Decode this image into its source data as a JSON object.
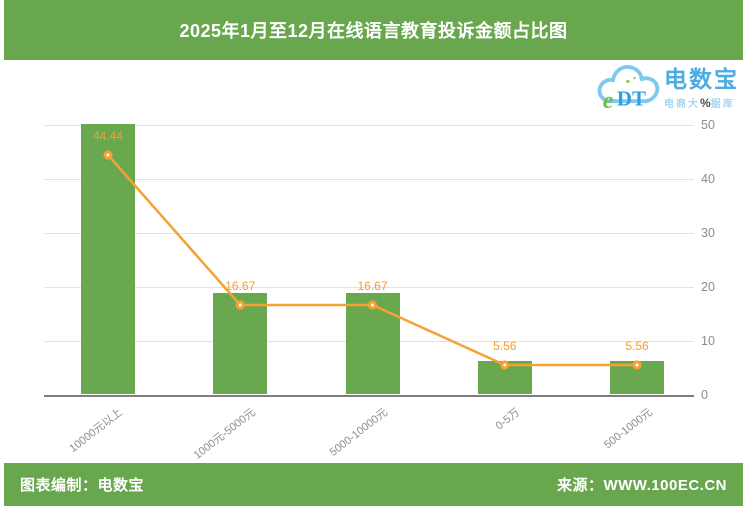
{
  "header": {
    "title": "2025年1月至12月在线语言教育投诉金额占比图"
  },
  "logo": {
    "cloud_e": "e",
    "cloud_dt": "DT",
    "brand": "电数宝",
    "tagline_prefix": "电商大",
    "tagline_percent": "%",
    "tagline_suffix": "据库"
  },
  "chart_data": {
    "type": "bar",
    "overlay": "line",
    "title": "2025年1月至12月在线语言教育投诉金额占比图",
    "categories": [
      "10000元以上",
      "1000元-5000元",
      "5000-10000元",
      "0-5万",
      "500-1000元"
    ],
    "values": [
      44.44,
      16.67,
      16.67,
      5.56,
      5.56
    ],
    "xlabel": "",
    "ylabel": "%",
    "y_axis": {
      "side": "right",
      "ticks": [
        0,
        10,
        20,
        30,
        40,
        50
      ],
      "ylim": [
        0,
        50
      ]
    },
    "grid": true,
    "legend": "none",
    "colors": {
      "bar": "#6aa84f",
      "line": "#f5a233",
      "value_label": "#f49d2a"
    }
  },
  "footer": {
    "left": "图表编制：电数宝",
    "right": "来源：WWW.100EC.CN"
  }
}
